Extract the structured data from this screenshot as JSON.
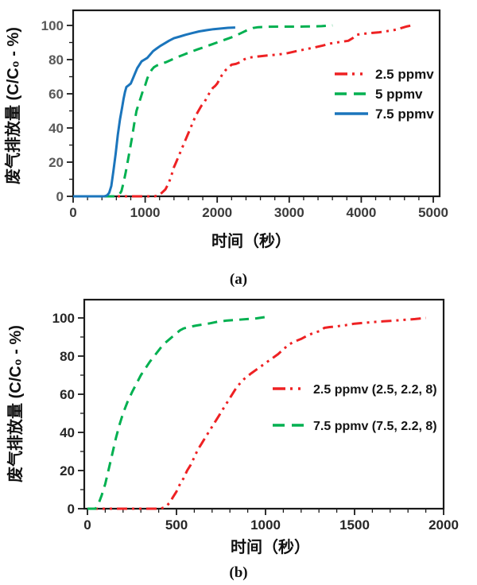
{
  "page": {
    "background": "#ffffff"
  },
  "colors": {
    "red": "#ee2123",
    "green": "#00b050",
    "blue": "#1b75bc",
    "axis": "#1a1a1a"
  },
  "chart_data": [
    {
      "id": "a",
      "type": "line",
      "caption": "(a)",
      "xlabel": "时间（秒）",
      "ylabel": "废气排放量 (C/C₀ - %)",
      "xlim": [
        0,
        5000
      ],
      "ylim": [
        0,
        100
      ],
      "grid": "off",
      "legend_position": "inside-right-middle",
      "x_axis": {
        "min": 0,
        "max": 5000,
        "major_step": 1000,
        "minor_step": 200,
        "tick_labels": [
          "0",
          "1000",
          "2000",
          "3000",
          "4000",
          "5000"
        ],
        "tick_color": "#3b3b3b"
      },
      "y_axis": {
        "min": 0,
        "max": 100,
        "major_step": 20,
        "minor_step": 10,
        "tick_labels": [
          "0",
          "20",
          "40",
          "60",
          "80",
          "100"
        ],
        "tick_color": "#595959"
      },
      "series": [
        {
          "name": "2.5 ppmv",
          "color": "#ee2123",
          "style": "dash-dot-dot",
          "points": [
            [
              0,
              0
            ],
            [
              1130,
              0
            ],
            [
              1180,
              0.5
            ],
            [
              1230,
              2
            ],
            [
              1280,
              4
            ],
            [
              1330,
              8
            ],
            [
              1370,
              13
            ],
            [
              1400,
              17
            ],
            [
              1430,
              20
            ],
            [
              1470,
              24
            ],
            [
              1510,
              28
            ],
            [
              1550,
              32
            ],
            [
              1600,
              37
            ],
            [
              1650,
              42
            ],
            [
              1700,
              47
            ],
            [
              1740,
              50
            ],
            [
              1780,
              53
            ],
            [
              1820,
              55
            ],
            [
              1860,
              58
            ],
            [
              1900,
              61
            ],
            [
              1940,
              63.5
            ],
            [
              1970,
              64.5
            ],
            [
              2000,
              66
            ],
            [
              2040,
              69
            ],
            [
              2080,
              72
            ],
            [
              2120,
              74
            ],
            [
              2160,
              75.5
            ],
            [
              2200,
              77
            ],
            [
              2260,
              77.5
            ],
            [
              2320,
              78.5
            ],
            [
              2370,
              80
            ],
            [
              2420,
              81
            ],
            [
              2500,
              81.5
            ],
            [
              2600,
              82
            ],
            [
              2720,
              82.5
            ],
            [
              2850,
              83
            ],
            [
              2980,
              83.8
            ],
            [
              3100,
              85
            ],
            [
              3220,
              86
            ],
            [
              3340,
              87
            ],
            [
              3460,
              88.2
            ],
            [
              3580,
              89.5
            ],
            [
              3700,
              90.3
            ],
            [
              3820,
              91
            ],
            [
              3880,
              92.5
            ],
            [
              3930,
              94.5
            ],
            [
              4000,
              95
            ],
            [
              4120,
              95.5
            ],
            [
              4250,
              96
            ],
            [
              4380,
              96.8
            ],
            [
              4480,
              97.5
            ],
            [
              4560,
              98.5
            ],
            [
              4640,
              99.5
            ],
            [
              4700,
              100
            ]
          ]
        },
        {
          "name": "5 ppmv",
          "color": "#00b050",
          "style": "dashed",
          "points": [
            [
              0,
              0
            ],
            [
              600,
              0
            ],
            [
              640,
              1
            ],
            [
              670,
              3
            ],
            [
              700,
              8
            ],
            [
              730,
              14
            ],
            [
              760,
              21
            ],
            [
              790,
              28
            ],
            [
              820,
              35
            ],
            [
              850,
              43
            ],
            [
              880,
              50
            ],
            [
              910,
              54
            ],
            [
              940,
              58
            ],
            [
              970,
              62
            ],
            [
              1000,
              65
            ],
            [
              1030,
              69
            ],
            [
              1060,
              72
            ],
            [
              1090,
              74
            ],
            [
              1120,
              75.5
            ],
            [
              1160,
              76.5
            ],
            [
              1220,
              77.5
            ],
            [
              1290,
              78.5
            ],
            [
              1370,
              80
            ],
            [
              1450,
              81.5
            ],
            [
              1540,
              83
            ],
            [
              1630,
              84.5
            ],
            [
              1730,
              86
            ],
            [
              1830,
              87.5
            ],
            [
              1930,
              89
            ],
            [
              2030,
              90.5
            ],
            [
              2130,
              92
            ],
            [
              2230,
              93.5
            ],
            [
              2330,
              95.5
            ],
            [
              2420,
              97.3
            ],
            [
              2500,
              98.5
            ],
            [
              2570,
              99
            ],
            [
              2700,
              99.2
            ],
            [
              2900,
              99.3
            ],
            [
              3100,
              99.3
            ],
            [
              3300,
              99.4
            ],
            [
              3450,
              99.6
            ],
            [
              3600,
              100
            ]
          ]
        },
        {
          "name": "7.5 ppmv",
          "color": "#1b75bc",
          "style": "solid",
          "points": [
            [
              0,
              0
            ],
            [
              430,
              0
            ],
            [
              470,
              0.5
            ],
            [
              500,
              2
            ],
            [
              530,
              6
            ],
            [
              560,
              15
            ],
            [
              590,
              25
            ],
            [
              620,
              36
            ],
            [
              650,
              45
            ],
            [
              680,
              52
            ],
            [
              700,
              57
            ],
            [
              720,
              61
            ],
            [
              740,
              64
            ],
            [
              770,
              65
            ],
            [
              800,
              66
            ],
            [
              830,
              69
            ],
            [
              860,
              72
            ],
            [
              890,
              75
            ],
            [
              920,
              77
            ],
            [
              950,
              79
            ],
            [
              990,
              80
            ],
            [
              1030,
              81
            ],
            [
              1070,
              83
            ],
            [
              1110,
              85
            ],
            [
              1160,
              86.5
            ],
            [
              1210,
              88
            ],
            [
              1270,
              89.5
            ],
            [
              1330,
              91
            ],
            [
              1400,
              92.5
            ],
            [
              1480,
              93.5
            ],
            [
              1560,
              94.5
            ],
            [
              1650,
              95.5
            ],
            [
              1750,
              96.5
            ],
            [
              1850,
              97.2
            ],
            [
              1950,
              97.8
            ],
            [
              2050,
              98.2
            ],
            [
              2150,
              98.6
            ],
            [
              2250,
              98.8
            ]
          ]
        }
      ]
    },
    {
      "id": "b",
      "type": "line",
      "caption": "(b)",
      "xlabel": "时间（秒）",
      "ylabel": "废气排放量 (C/C₀ - %)",
      "xlim": [
        0,
        2000
      ],
      "ylim": [
        0,
        100
      ],
      "grid": "off",
      "legend_position": "inside-right-middle",
      "x_axis": {
        "min": 0,
        "max": 2000,
        "major_step": 500,
        "minor_step": 100,
        "tick_labels": [
          "0",
          "500",
          "1000",
          "1500",
          "2000"
        ],
        "tick_color": "#262626"
      },
      "y_axis": {
        "min": 0,
        "max": 100,
        "major_step": 20,
        "minor_step": 10,
        "tick_labels": [
          "0",
          "20",
          "40",
          "60",
          "80",
          "100"
        ],
        "tick_color": "#262626"
      },
      "series": [
        {
          "name": "2.5 ppmv (2.5, 2.2, 8)",
          "color": "#ee2123",
          "style": "dash-dot-dot",
          "points": [
            [
              0,
              0
            ],
            [
              410,
              0
            ],
            [
              440,
              1
            ],
            [
              460,
              3
            ],
            [
              480,
              6
            ],
            [
              500,
              9
            ],
            [
              520,
              13
            ],
            [
              540,
              16
            ],
            [
              560,
              20
            ],
            [
              580,
              23
            ],
            [
              600,
              27
            ],
            [
              620,
              31
            ],
            [
              640,
              34
            ],
            [
              660,
              37
            ],
            [
              680,
              40
            ],
            [
              700,
              43
            ],
            [
              720,
              46
            ],
            [
              740,
              49
            ],
            [
              760,
              52
            ],
            [
              780,
              55
            ],
            [
              800,
              58
            ],
            [
              820,
              61
            ],
            [
              840,
              64
            ],
            [
              860,
              66
            ],
            [
              880,
              68
            ],
            [
              900,
              69.5
            ],
            [
              920,
              71
            ],
            [
              950,
              73
            ],
            [
              980,
              75
            ],
            [
              1010,
              77
            ],
            [
              1040,
              79
            ],
            [
              1070,
              81
            ],
            [
              1100,
              83.5
            ],
            [
              1130,
              86
            ],
            [
              1160,
              87.5
            ],
            [
              1200,
              89
            ],
            [
              1240,
              91
            ],
            [
              1280,
              92.5
            ],
            [
              1310,
              93.2
            ],
            [
              1330,
              94.8
            ],
            [
              1360,
              95.2
            ],
            [
              1400,
              95.6
            ],
            [
              1450,
              96.2
            ],
            [
              1500,
              97
            ],
            [
              1550,
              97.4
            ],
            [
              1600,
              97.8
            ],
            [
              1660,
              98.2
            ],
            [
              1720,
              98.6
            ],
            [
              1780,
              99
            ],
            [
              1840,
              99.4
            ],
            [
              1900,
              100
            ]
          ]
        },
        {
          "name": "7.5 ppmv (7.5, 2.2, 8)",
          "color": "#00b050",
          "style": "dashed",
          "points": [
            [
              0,
              0
            ],
            [
              45,
              0
            ],
            [
              60,
              2
            ],
            [
              80,
              7
            ],
            [
              100,
              13
            ],
            [
              120,
              21
            ],
            [
              140,
              29
            ],
            [
              160,
              37
            ],
            [
              180,
              44
            ],
            [
              200,
              50
            ],
            [
              225,
              56
            ],
            [
              250,
              61
            ],
            [
              275,
              65.5
            ],
            [
              300,
              70
            ],
            [
              325,
              73.5
            ],
            [
              350,
              77
            ],
            [
              375,
              80
            ],
            [
              400,
              83
            ],
            [
              425,
              86
            ],
            [
              450,
              88
            ],
            [
              475,
              90
            ],
            [
              500,
              92
            ],
            [
              520,
              93.5
            ],
            [
              540,
              94.5
            ],
            [
              570,
              95.2
            ],
            [
              610,
              96
            ],
            [
              650,
              96.6
            ],
            [
              690,
              97.2
            ],
            [
              730,
              98
            ],
            [
              780,
              98.6
            ],
            [
              840,
              99
            ],
            [
              900,
              99.4
            ],
            [
              950,
              99.8
            ],
            [
              1000,
              100.5
            ]
          ]
        }
      ]
    }
  ]
}
